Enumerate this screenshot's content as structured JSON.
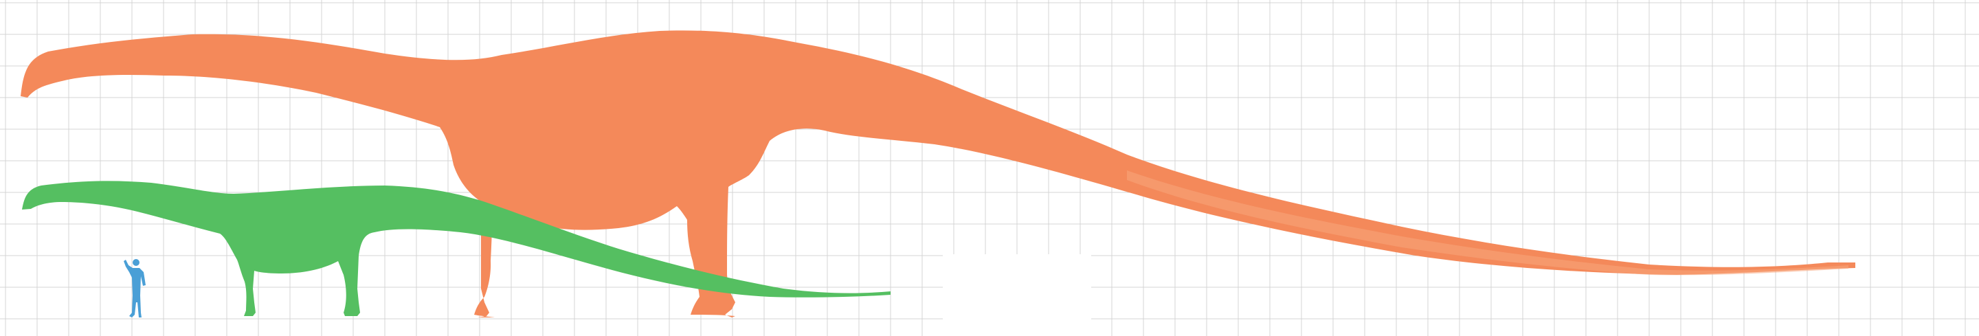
{
  "diagram": {
    "type": "size-comparison",
    "background": "#ffffff",
    "grid_color": "#d4d4d4",
    "silhouettes": [
      {
        "id": "orange-sauropod",
        "color": "#f4895a"
      },
      {
        "id": "green-sauropod",
        "color": "#55bf61"
      },
      {
        "id": "human",
        "color": "#4a9fd6"
      }
    ]
  }
}
